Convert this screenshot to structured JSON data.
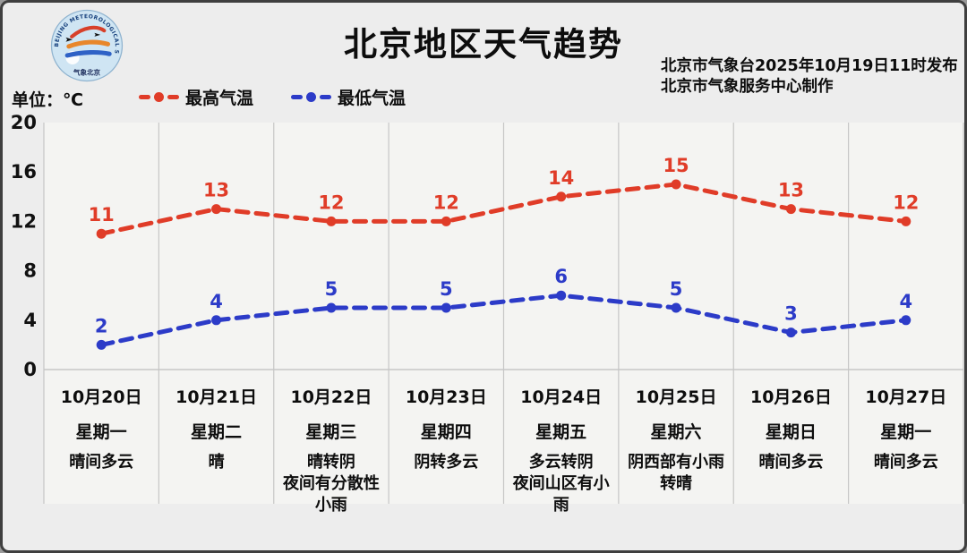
{
  "header": {
    "title": "北京地区天气趋势",
    "source_line1": "北京市气象台2025年10月19日11时发布",
    "source_line2": "北京市气象服务中心制作",
    "unit_label": "单位：℃",
    "logo": {
      "icon": "beijing-meteorological-service-logo",
      "ring_text": "BEIJING METEOROLOGICAL SERVICE",
      "bottom_text": "气象北京"
    }
  },
  "legend": [
    {
      "label": "最高气温",
      "color": "#e03c28"
    },
    {
      "label": "最低气温",
      "color": "#2c3bc8"
    }
  ],
  "chart_data": {
    "type": "line",
    "line_style": "dashed",
    "grid": "vertical-only",
    "legend_position": "top-left",
    "ylabel": "℃",
    "ylim": [
      0,
      20
    ],
    "yticks": [
      0,
      4,
      8,
      12,
      16,
      20
    ],
    "categories": [
      {
        "date": "10月20日",
        "weekday": "星期一",
        "weather": [
          "晴间多云"
        ]
      },
      {
        "date": "10月21日",
        "weekday": "星期二",
        "weather": [
          "晴"
        ]
      },
      {
        "date": "10月22日",
        "weekday": "星期三",
        "weather": [
          "晴转阴",
          "夜间有分散性",
          "小雨"
        ]
      },
      {
        "date": "10月23日",
        "weekday": "星期四",
        "weather": [
          "阴转多云"
        ]
      },
      {
        "date": "10月24日",
        "weekday": "星期五",
        "weather": [
          "多云转阴",
          "夜间山区有小",
          "雨"
        ]
      },
      {
        "date": "10月25日",
        "weekday": "星期六",
        "weather": [
          "阴西部有小雨",
          "转晴"
        ]
      },
      {
        "date": "10月26日",
        "weekday": "星期日",
        "weather": [
          "晴间多云"
        ]
      },
      {
        "date": "10月27日",
        "weekday": "星期一",
        "weather": [
          "晴间多云"
        ]
      }
    ],
    "series": [
      {
        "name": "最高气温",
        "color": "#e03c28",
        "values": [
          11,
          13,
          12,
          12,
          14,
          15,
          13,
          12
        ]
      },
      {
        "name": "最低气温",
        "color": "#2c3bc8",
        "values": [
          2,
          4,
          5,
          5,
          6,
          5,
          3,
          4
        ]
      }
    ]
  }
}
